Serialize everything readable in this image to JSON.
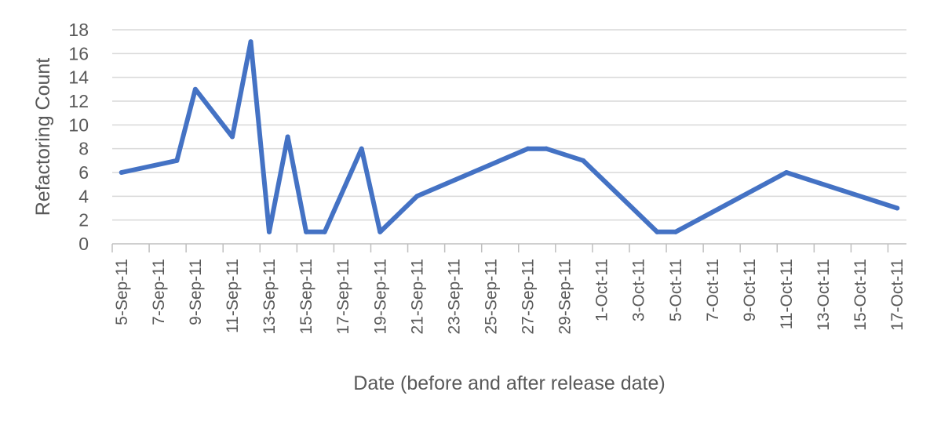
{
  "chart_data": {
    "type": "line",
    "title": "",
    "xlabel": "Date (before and after release date)",
    "ylabel": "Refactoring Count",
    "ylim": [
      0,
      18
    ],
    "yticks": [
      0,
      2,
      4,
      6,
      8,
      10,
      12,
      14,
      16,
      18
    ],
    "x_range": [
      "5-Sep-11",
      "17-Oct-11"
    ],
    "xticks": [
      "5-Sep-11",
      "7-Sep-11",
      "9-Sep-11",
      "11-Sep-11",
      "13-Sep-11",
      "15-Sep-11",
      "17-Sep-11",
      "19-Sep-11",
      "21-Sep-11",
      "23-Sep-11",
      "25-Sep-11",
      "27-Sep-11",
      "29-Sep-11",
      "1-Oct-11",
      "3-Oct-11",
      "5-Oct-11",
      "7-Oct-11",
      "9-Oct-11",
      "11-Oct-11",
      "13-Oct-11",
      "15-Oct-11",
      "17-Oct-11"
    ],
    "grid": true,
    "legend": "none",
    "color": "#4472c4",
    "series": [
      {
        "x": [
          "5-Sep-11",
          "8-Sep-11",
          "9-Sep-11",
          "11-Sep-11",
          "12-Sep-11",
          "13-Sep-11",
          "14-Sep-11",
          "15-Sep-11",
          "16-Sep-11",
          "18-Sep-11",
          "19-Sep-11",
          "21-Sep-11",
          "27-Sep-11",
          "28-Sep-11",
          "30-Sep-11",
          "4-Oct-11",
          "5-Oct-11",
          "11-Oct-11",
          "17-Oct-11"
        ],
        "values": [
          6,
          7,
          13,
          9,
          17,
          1,
          9,
          1,
          1,
          8,
          1,
          4,
          8,
          8,
          7,
          1,
          1,
          6,
          3
        ]
      }
    ]
  }
}
